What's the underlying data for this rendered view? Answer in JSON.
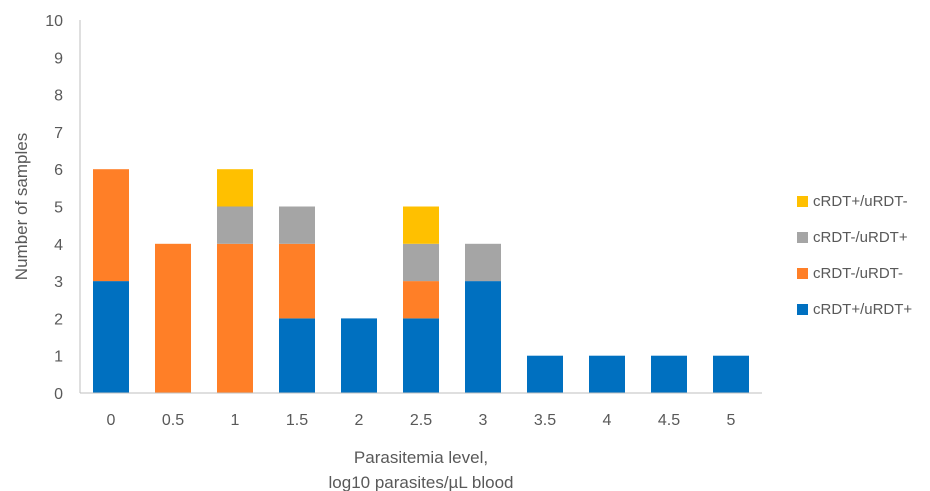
{
  "chart_data": {
    "type": "bar",
    "stacked": true,
    "title": "",
    "xlabel_lines": [
      "Parasitemia level,",
      "log10 parasites/µL blood"
    ],
    "ylabel": "Number of samples",
    "ylim": [
      0,
      10
    ],
    "yticks": [
      "0",
      "1",
      "2",
      "3",
      "4",
      "5",
      "6",
      "7",
      "8",
      "9",
      "10"
    ],
    "categories": [
      "0",
      "0.5",
      "1",
      "1.5",
      "2",
      "2.5",
      "3",
      "3.5",
      "4",
      "4.5",
      "5"
    ],
    "grid": false,
    "legend_position": "right",
    "series": [
      {
        "name": "cRDT+/uRDT+",
        "color": "#0070C0",
        "values": [
          3,
          0,
          0,
          2,
          2,
          2,
          3,
          1,
          1,
          1,
          1
        ]
      },
      {
        "name": "cRDT-/uRDT-",
        "color": "#FF7F27",
        "values": [
          3,
          4,
          4,
          2,
          0,
          1,
          0,
          0,
          0,
          0,
          0
        ]
      },
      {
        "name": "cRDT-/uRDT+",
        "color": "#A5A5A5",
        "values": [
          0,
          0,
          1,
          1,
          0,
          1,
          1,
          0,
          0,
          0,
          0
        ]
      },
      {
        "name": "cRDT+/uRDT-",
        "color": "#FFC000",
        "values": [
          0,
          0,
          1,
          0,
          0,
          1,
          0,
          0,
          0,
          0,
          0
        ]
      }
    ],
    "legend_order": [
      "cRDT+/uRDT-",
      "cRDT-/uRDT+",
      "cRDT-/uRDT-",
      "cRDT+/uRDT+"
    ]
  }
}
